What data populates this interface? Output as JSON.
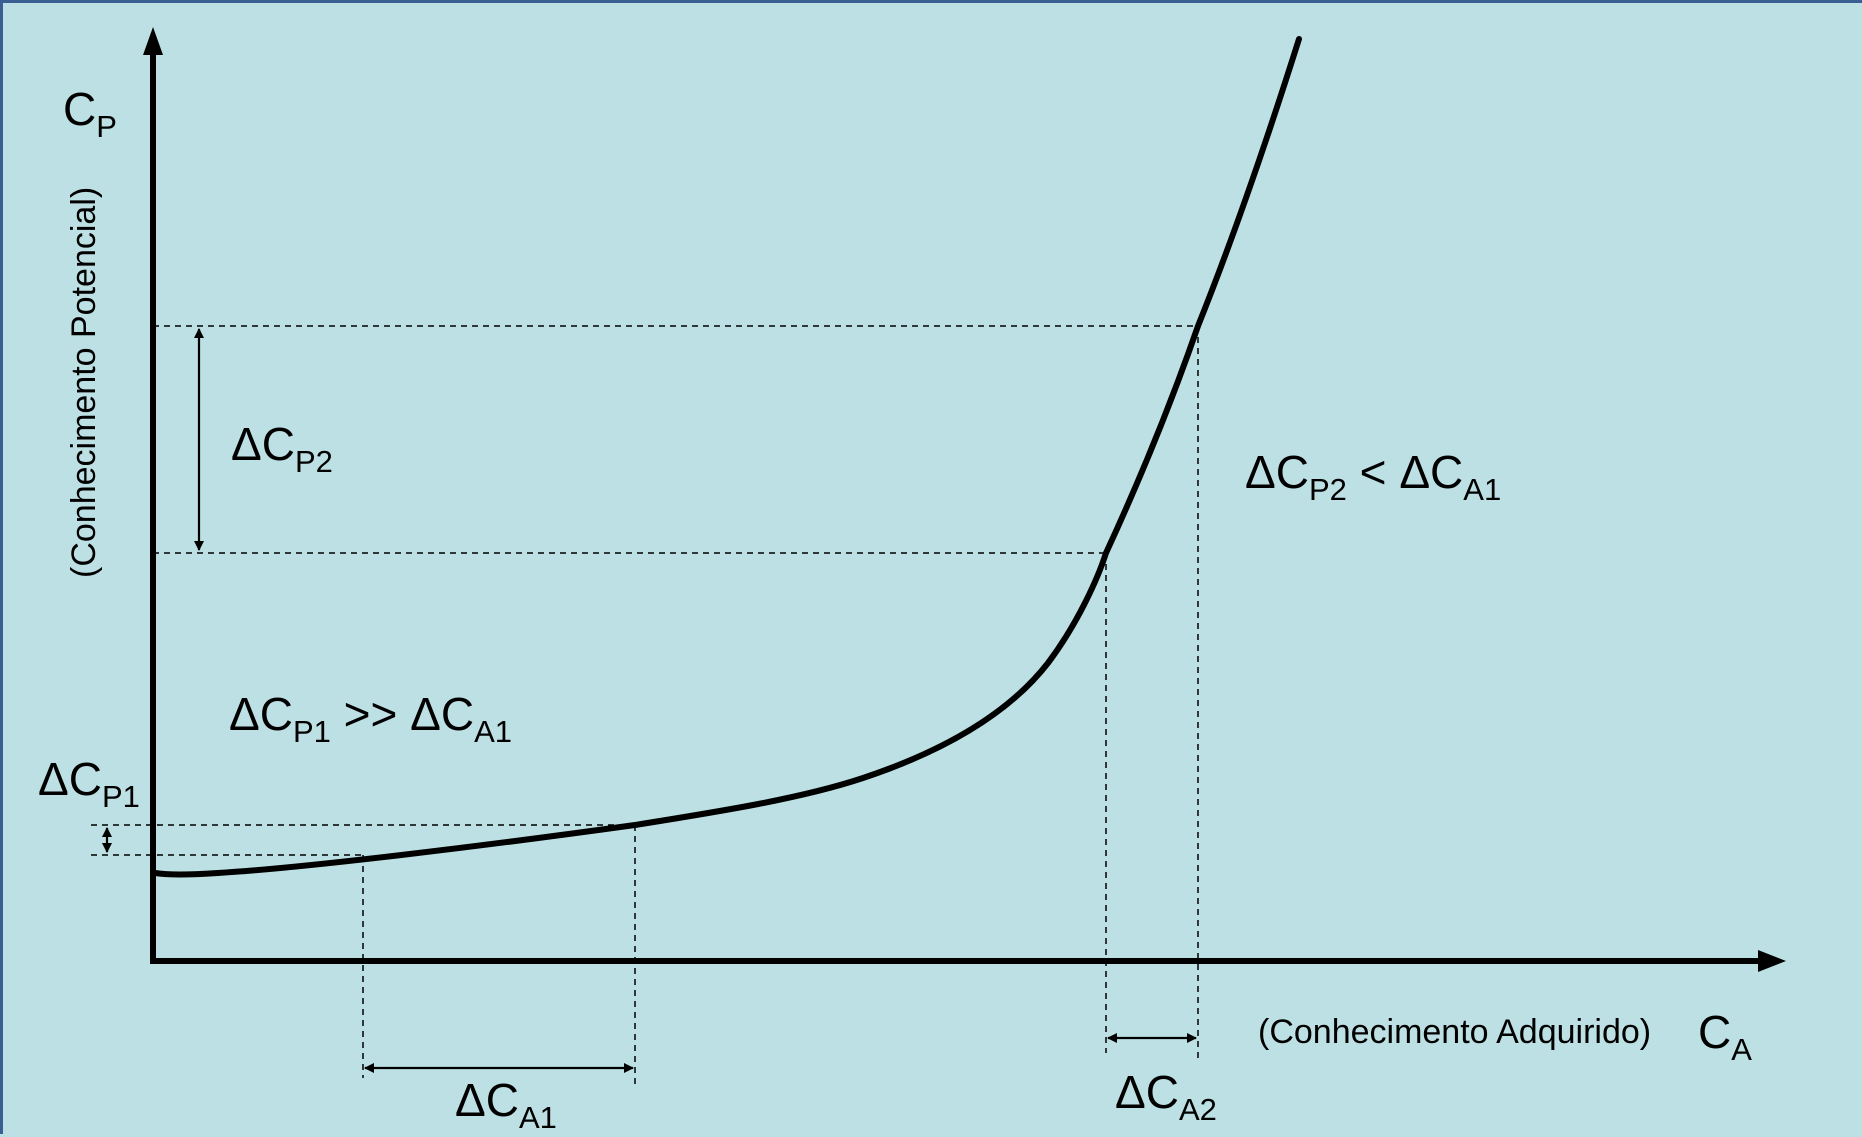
{
  "axes": {
    "y_symbol": "C",
    "y_symbol_sub": "P",
    "y_caption": "(Conhecimento Potencial)",
    "x_caption": "(Conhecimento Adquirido)",
    "x_symbol": "C",
    "x_symbol_sub": "A"
  },
  "labels": {
    "dcp2": {
      "main": "ΔC",
      "sub": "P2"
    },
    "dcp1_left": {
      "main": "ΔC",
      "sub": "P1"
    },
    "dca1": {
      "main": "ΔC",
      "sub": "A1"
    },
    "dca2": {
      "main": "ΔC",
      "sub": "A2"
    },
    "rel1": {
      "a_main": "ΔC",
      "a_sub": "P1",
      "op": " >> ",
      "b_main": "ΔC",
      "b_sub": "A1"
    },
    "rel2": {
      "a_main": "ΔC",
      "a_sub": "P2",
      "op": " < ",
      "b_main": "ΔC",
      "b_sub": "A1"
    }
  },
  "colors": {
    "background": "#bce0e3",
    "frame": "#3a5f92",
    "ink": "#000000"
  }
}
